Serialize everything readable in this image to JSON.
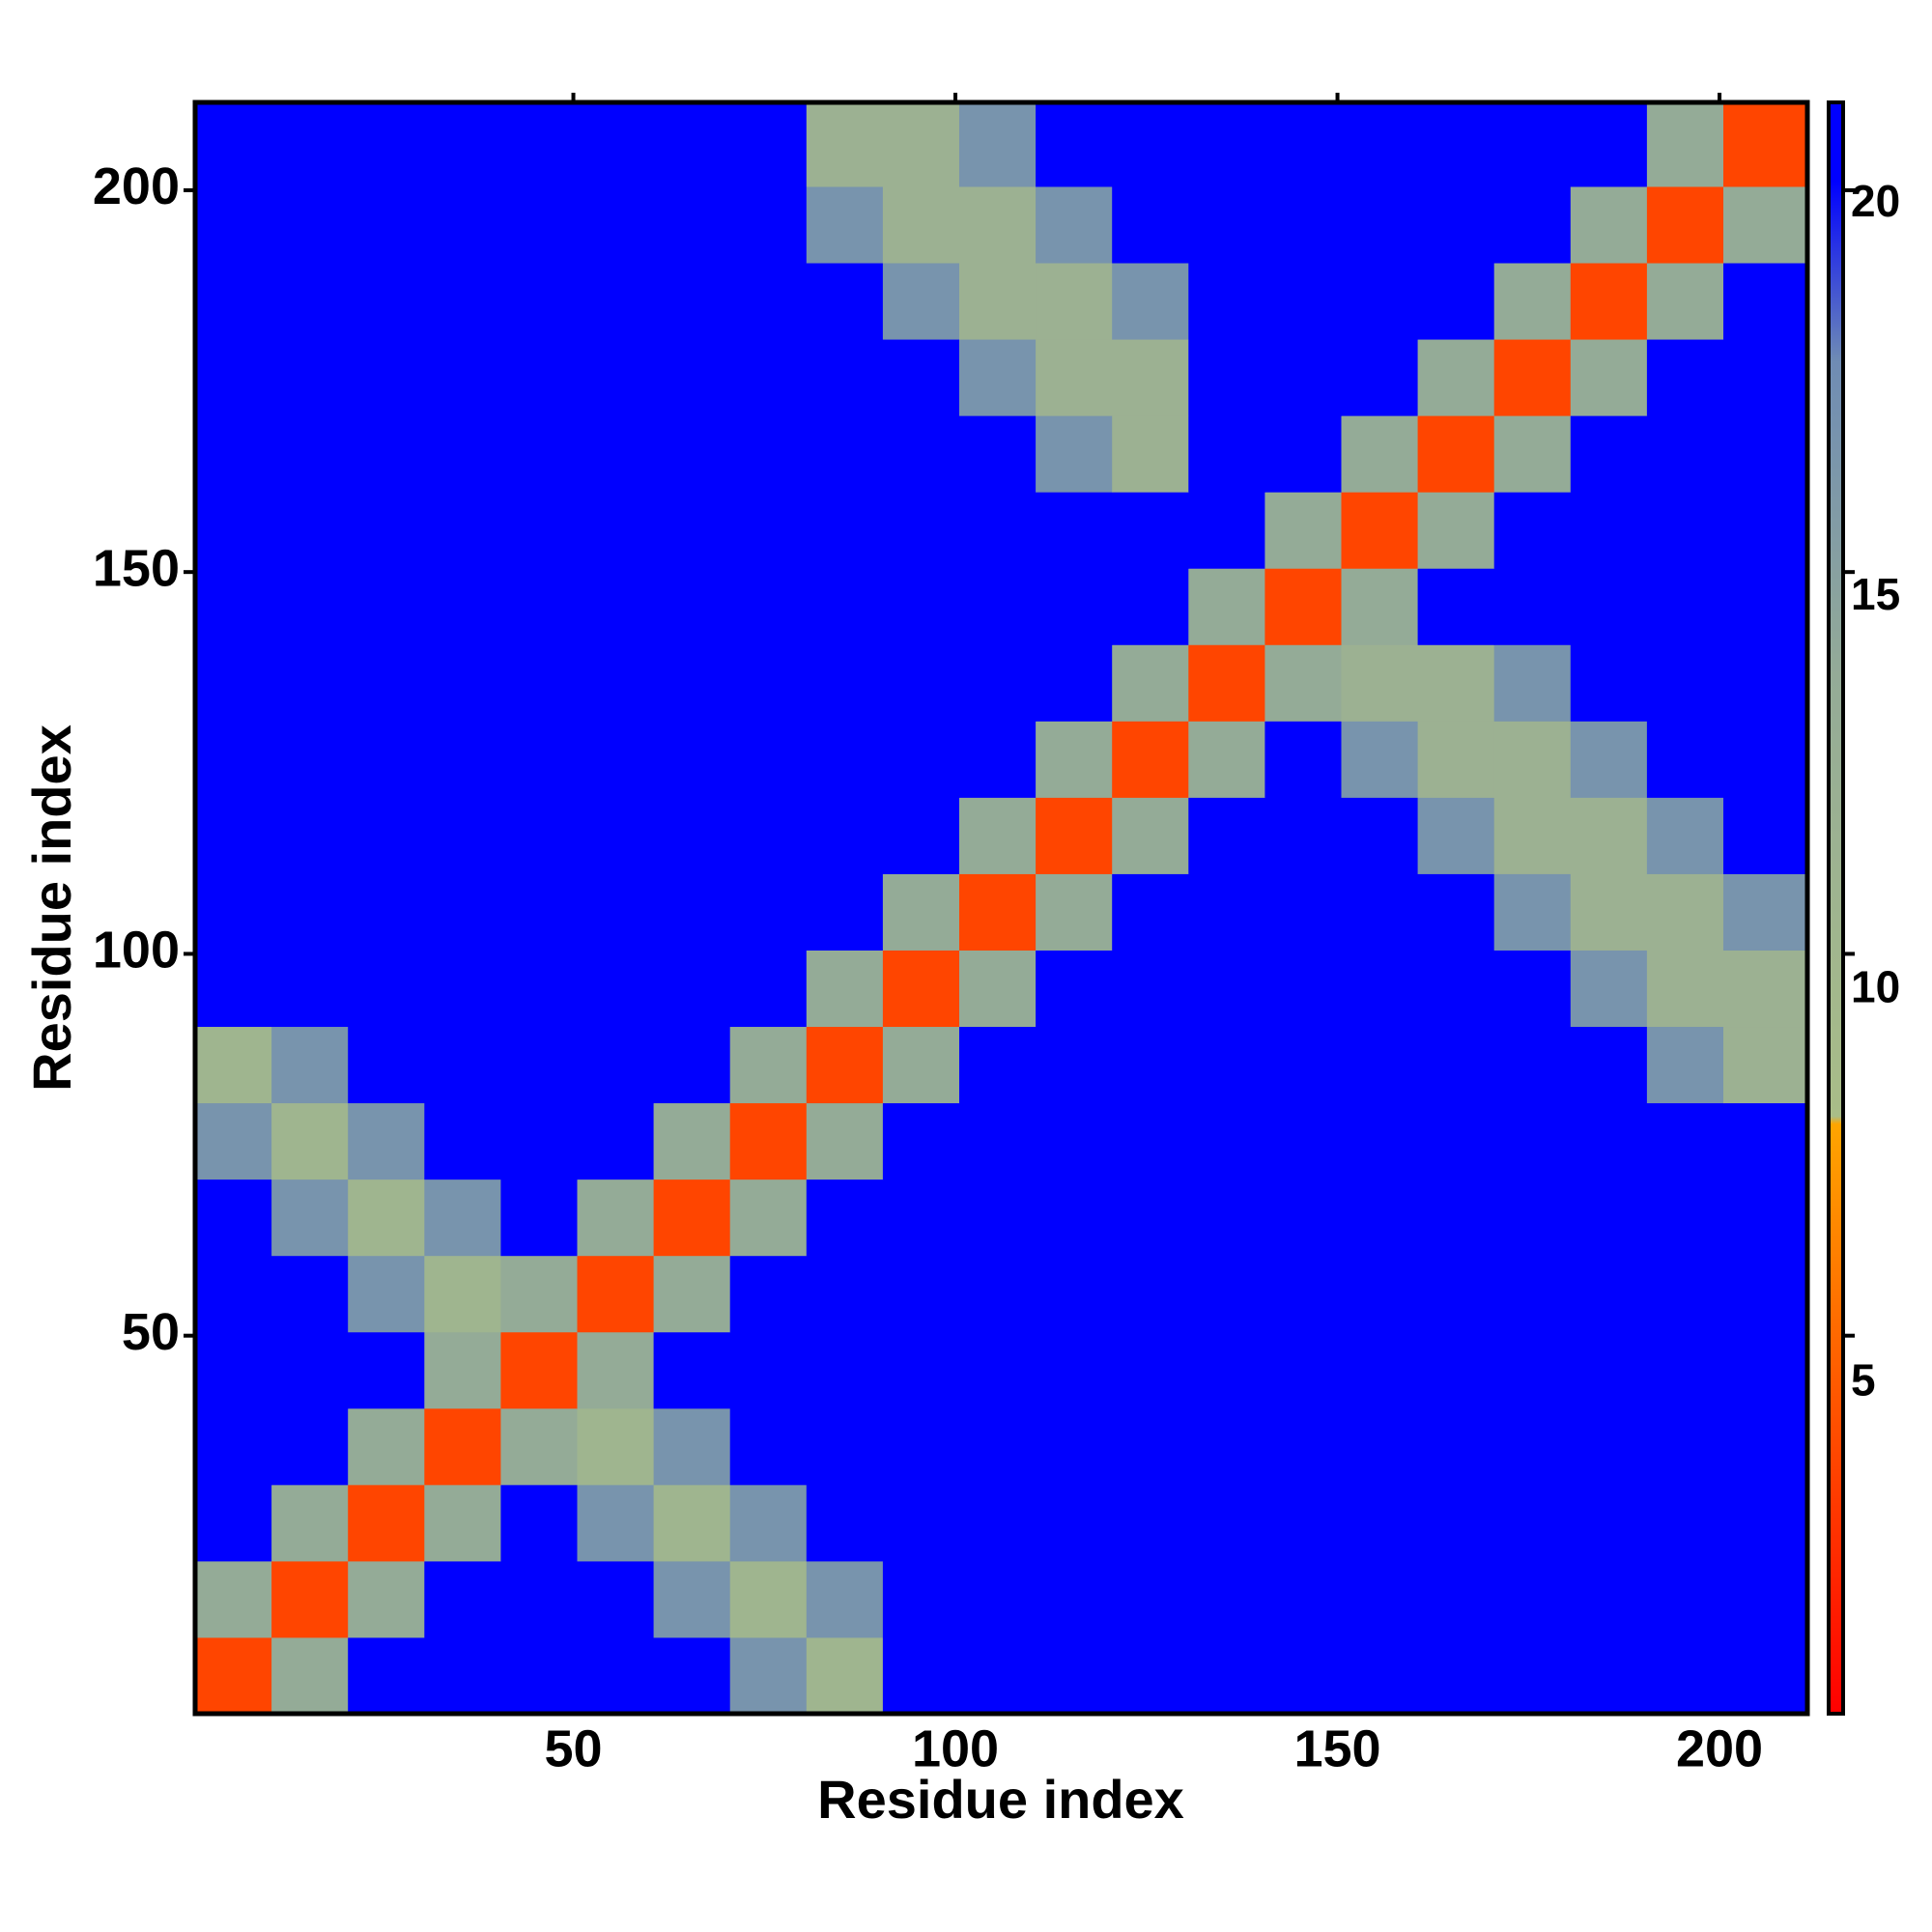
{
  "chart_data": {
    "type": "heatmap",
    "x_label": "Residue index",
    "y_label": "Residue index",
    "xlim": [
      0.5,
      211.5
    ],
    "ylim": [
      0.5,
      211.5
    ],
    "xticks": [
      50,
      100,
      150,
      200
    ],
    "yticks": [
      50,
      100,
      150,
      200
    ],
    "xbins": [
      0.5,
      10.5,
      20.5,
      30.5,
      40.5,
      50.5,
      60.5,
      70.5,
      80.5,
      90.5,
      100.5,
      110.5,
      120.5,
      130.5,
      140.5,
      150.5,
      160.5,
      170.5,
      180.5,
      190.5,
      200.5,
      211.5
    ],
    "ybins": [
      0.5,
      10.5,
      20.5,
      30.5,
      40.5,
      50.5,
      60.5,
      70.5,
      80.5,
      90.5,
      100.5,
      110.5,
      120.5,
      130.5,
      140.5,
      150.5,
      160.5,
      170.5,
      180.5,
      190.5,
      200.5,
      211.5
    ],
    "zlim": [
      0.8,
      21.3
    ],
    "zticks": [
      5,
      10,
      15,
      20
    ],
    "colorscale": [
      [
        0.8,
        "#ff0000"
      ],
      [
        5,
        "#ff5a00"
      ],
      [
        8.3,
        "#ffa500"
      ],
      [
        8.4,
        "#a9bd88"
      ],
      [
        14,
        "#94ab97"
      ],
      [
        18,
        "#6f8cb4"
      ],
      [
        20.3,
        "#0000ff"
      ]
    ],
    "z": [
      [
        4,
        14,
        21,
        21,
        21,
        21,
        21,
        17,
        11,
        21,
        21,
        21,
        21,
        21,
        21,
        21,
        21,
        21,
        21,
        21,
        21
      ],
      [
        14,
        4,
        14,
        21,
        21,
        21,
        17,
        11,
        17,
        21,
        21,
        21,
        21,
        21,
        21,
        21,
        21,
        21,
        21,
        21,
        21
      ],
      [
        21,
        14,
        4,
        14,
        21,
        17,
        11,
        17,
        21,
        21,
        21,
        21,
        21,
        21,
        21,
        21,
        21,
        21,
        21,
        21,
        21
      ],
      [
        21,
        21,
        14,
        4,
        14,
        11,
        17,
        21,
        21,
        21,
        21,
        21,
        21,
        21,
        21,
        21,
        21,
        21,
        21,
        21,
        21
      ],
      [
        21,
        21,
        21,
        14,
        4,
        14,
        21,
        21,
        21,
        21,
        21,
        21,
        21,
        21,
        21,
        21,
        21,
        21,
        21,
        21,
        21
      ],
      [
        21,
        21,
        17,
        11,
        14,
        4,
        14,
        21,
        21,
        21,
        21,
        21,
        21,
        21,
        21,
        21,
        21,
        21,
        21,
        21,
        21
      ],
      [
        21,
        17,
        11,
        17,
        21,
        14,
        4,
        14,
        21,
        21,
        21,
        21,
        21,
        21,
        21,
        21,
        21,
        21,
        21,
        21,
        21
      ],
      [
        17,
        11,
        17,
        21,
        21,
        21,
        14,
        4,
        14,
        21,
        21,
        21,
        21,
        21,
        21,
        21,
        21,
        21,
        21,
        21,
        21
      ],
      [
        11,
        17,
        21,
        21,
        21,
        21,
        21,
        14,
        4,
        14,
        21,
        21,
        21,
        21,
        21,
        21,
        21,
        21,
        21,
        17,
        12
      ],
      [
        21,
        21,
        21,
        21,
        21,
        21,
        21,
        21,
        14,
        4,
        14,
        21,
        21,
        21,
        21,
        21,
        21,
        21,
        17,
        12,
        12
      ],
      [
        21,
        21,
        21,
        21,
        21,
        21,
        21,
        21,
        21,
        14,
        4,
        14,
        21,
        21,
        21,
        21,
        21,
        17,
        12,
        12,
        17
      ],
      [
        21,
        21,
        21,
        21,
        21,
        21,
        21,
        21,
        21,
        21,
        14,
        4,
        14,
        21,
        21,
        21,
        17,
        12,
        12,
        17,
        21
      ],
      [
        21,
        21,
        21,
        21,
        21,
        21,
        21,
        21,
        21,
        21,
        21,
        14,
        4,
        14,
        21,
        17,
        12,
        12,
        17,
        21,
        21
      ],
      [
        21,
        21,
        21,
        21,
        21,
        21,
        21,
        21,
        21,
        21,
        21,
        21,
        14,
        4,
        14,
        12,
        12,
        17,
        21,
        21,
        21
      ],
      [
        21,
        21,
        21,
        21,
        21,
        21,
        21,
        21,
        21,
        21,
        21,
        21,
        21,
        14,
        4,
        14,
        21,
        21,
        21,
        21,
        21
      ],
      [
        21,
        21,
        21,
        21,
        21,
        21,
        21,
        21,
        21,
        21,
        21,
        21,
        21,
        21,
        14,
        4,
        14,
        21,
        21,
        21,
        21
      ],
      [
        21,
        21,
        21,
        21,
        21,
        21,
        21,
        21,
        21,
        21,
        21,
        17,
        12,
        21,
        21,
        14,
        4,
        14,
        21,
        21,
        21
      ],
      [
        21,
        21,
        21,
        21,
        21,
        21,
        21,
        21,
        21,
        21,
        17,
        12,
        12,
        21,
        21,
        21,
        14,
        4,
        14,
        21,
        21
      ],
      [
        21,
        21,
        21,
        21,
        21,
        21,
        21,
        21,
        21,
        17,
        12,
        12,
        17,
        21,
        21,
        21,
        21,
        14,
        4,
        14,
        21
      ],
      [
        21,
        21,
        21,
        21,
        21,
        21,
        21,
        21,
        17,
        12,
        12,
        17,
        21,
        21,
        21,
        21,
        21,
        21,
        14,
        4,
        14
      ],
      [
        21,
        21,
        21,
        21,
        21,
        21,
        21,
        21,
        12,
        12,
        17,
        21,
        21,
        21,
        21,
        21,
        21,
        21,
        21,
        14,
        4
      ]
    ]
  }
}
